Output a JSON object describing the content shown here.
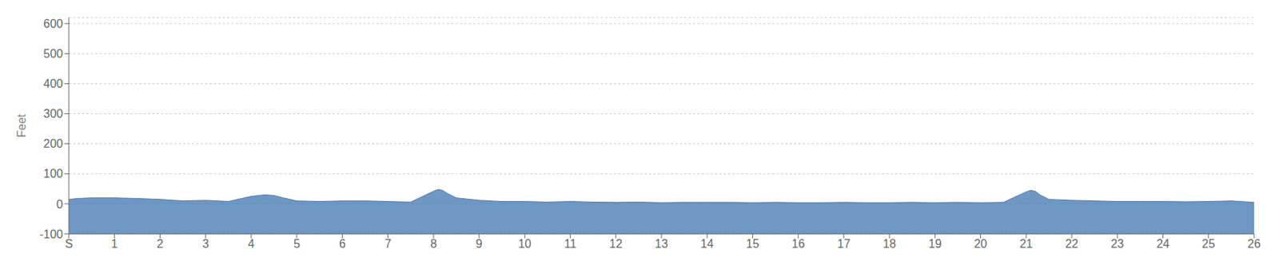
{
  "chart_data": {
    "type": "area",
    "ylabel": "Feet",
    "color": "#4a7db5",
    "grid": true,
    "xlim": [
      0,
      26
    ],
    "xticks": [
      {
        "value": 0,
        "label": "S"
      },
      1,
      2,
      3,
      4,
      5,
      6,
      7,
      8,
      9,
      10,
      11,
      12,
      13,
      14,
      15,
      16,
      17,
      18,
      19,
      20,
      21,
      22,
      23,
      24,
      25,
      26
    ],
    "ylim": [
      -100,
      620
    ],
    "yticks": [
      -100,
      0,
      100,
      200,
      300,
      400,
      500,
      600
    ],
    "x": [
      0,
      0.2,
      0.5,
      1.0,
      1.5,
      2.0,
      2.5,
      3.0,
      3.5,
      4.0,
      4.3,
      4.5,
      4.7,
      5.0,
      5.5,
      6.0,
      6.5,
      7.0,
      7.5,
      8.0,
      8.1,
      8.2,
      8.3,
      8.5,
      9.0,
      9.5,
      10.0,
      10.5,
      11.0,
      11.5,
      12.0,
      12.5,
      13.0,
      13.5,
      14.0,
      14.5,
      15.0,
      15.5,
      16.0,
      16.5,
      17.0,
      17.5,
      18.0,
      18.5,
      19.0,
      19.5,
      20.0,
      20.5,
      21.0,
      21.1,
      21.2,
      21.3,
      21.5,
      22.0,
      22.5,
      23.0,
      23.5,
      24.0,
      24.5,
      25.0,
      25.5,
      26.0
    ],
    "values": [
      15,
      18,
      20,
      20,
      18,
      15,
      10,
      12,
      8,
      25,
      30,
      28,
      20,
      10,
      8,
      10,
      10,
      8,
      6,
      42,
      48,
      45,
      35,
      20,
      12,
      8,
      8,
      6,
      8,
      6,
      5,
      6,
      4,
      5,
      5,
      5,
      4,
      5,
      4,
      4,
      5,
      4,
      4,
      5,
      4,
      5,
      4,
      5,
      40,
      45,
      42,
      30,
      15,
      12,
      10,
      8,
      8,
      8,
      7,
      8,
      10,
      5
    ]
  }
}
